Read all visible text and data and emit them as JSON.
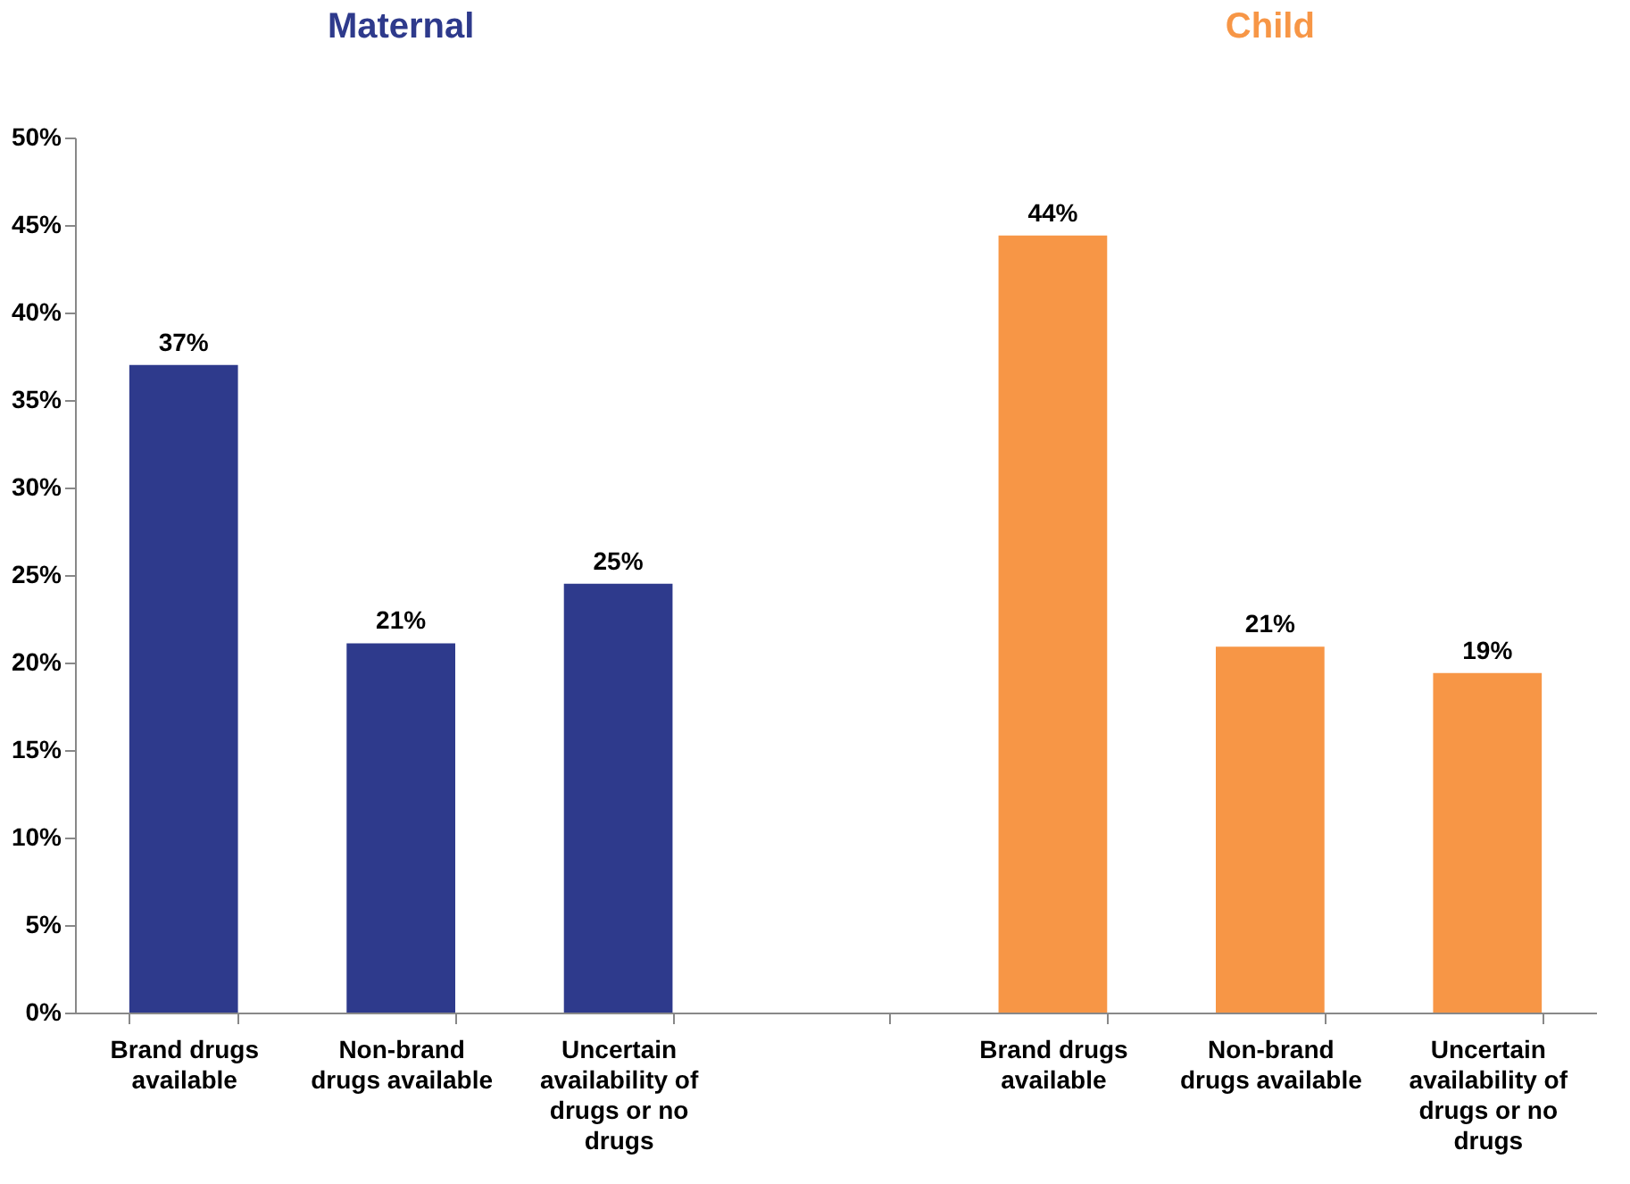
{
  "chart_data": {
    "type": "bar",
    "categories": [
      "Brand drugs available",
      "Non-brand drugs available",
      "Uncertain availability of drugs or no drugs",
      null,
      "Brand drugs available",
      "Non-brand drugs available",
      "Uncertain availability of drugs or no drugs"
    ],
    "series": [
      {
        "name": "Maternal",
        "color": "#2e3a8c",
        "values": [
          37,
          21.1,
          24.5,
          null,
          null,
          null,
          null
        ],
        "value_labels": [
          "37%",
          "21%",
          "25%",
          null,
          null,
          null,
          null
        ]
      },
      {
        "name": "Child",
        "color": "#f79646",
        "values": [
          null,
          null,
          null,
          null,
          44.4,
          20.9,
          19.4
        ],
        "value_labels": [
          null,
          null,
          null,
          null,
          "44%",
          "21%",
          "19%"
        ]
      }
    ],
    "ylim": [
      0,
      50
    ],
    "yticks": [
      {
        "value": 0,
        "label": "0%"
      },
      {
        "value": 5,
        "label": "5%"
      },
      {
        "value": 10,
        "label": "10%"
      },
      {
        "value": 15,
        "label": "15%"
      },
      {
        "value": 20,
        "label": "20%"
      },
      {
        "value": 25,
        "label": "25%"
      },
      {
        "value": 30,
        "label": "30%"
      },
      {
        "value": 35,
        "label": "35%"
      },
      {
        "value": 40,
        "label": "40%"
      },
      {
        "value": 45,
        "label": "45%"
      },
      {
        "value": 50,
        "label": "50%"
      }
    ],
    "grid": false,
    "legend": false
  }
}
